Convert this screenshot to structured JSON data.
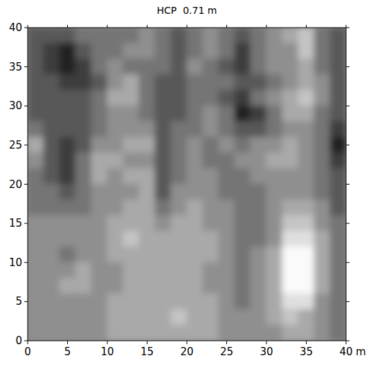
{
  "chart_data": {
    "type": "heatmap",
    "title": "HCP  0.71 m",
    "x_label": "m",
    "xlim": [
      0,
      40
    ],
    "ylim": [
      0,
      40
    ],
    "xticks": [
      0,
      5,
      10,
      15,
      20,
      25,
      30,
      35,
      40
    ],
    "yticks": [
      0,
      5,
      10,
      15,
      20,
      25,
      30,
      35,
      40
    ],
    "x": [
      1,
      3,
      5,
      7,
      9,
      11,
      13,
      15,
      17,
      19,
      21,
      23,
      25,
      27,
      29,
      31,
      33,
      35,
      37,
      39
    ],
    "y": [
      39,
      37,
      35,
      33,
      31,
      29,
      27,
      25,
      23,
      21,
      19,
      17,
      15,
      13,
      11,
      9,
      7,
      5,
      3,
      1
    ],
    "cells": [
      [
        3,
        3,
        3,
        4,
        4,
        4,
        4,
        5,
        4,
        3,
        4,
        5,
        4,
        3,
        4,
        5,
        6,
        7,
        4,
        3
      ],
      [
        3,
        2,
        1,
        3,
        4,
        4,
        5,
        5,
        4,
        3,
        4,
        5,
        4,
        2,
        4,
        5,
        5,
        7,
        4,
        3
      ],
      [
        3,
        2,
        1,
        2,
        4,
        5,
        4,
        4,
        4,
        3,
        5,
        4,
        3,
        2,
        4,
        5,
        5,
        6,
        4,
        3
      ],
      [
        3,
        3,
        2,
        2,
        3,
        5,
        6,
        4,
        3,
        3,
        4,
        4,
        4,
        3,
        3,
        4,
        5,
        6,
        5,
        3
      ],
      [
        3,
        3,
        3,
        3,
        4,
        6,
        6,
        4,
        3,
        3,
        4,
        4,
        3,
        2,
        4,
        5,
        6,
        7,
        5,
        3
      ],
      [
        3,
        3,
        3,
        3,
        4,
        5,
        5,
        4,
        3,
        3,
        4,
        5,
        4,
        1,
        2,
        4,
        6,
        6,
        4,
        3
      ],
      [
        4,
        3,
        3,
        3,
        4,
        5,
        5,
        5,
        3,
        4,
        4,
        5,
        4,
        3,
        3,
        4,
        5,
        5,
        4,
        2
      ],
      [
        6,
        3,
        2,
        3,
        5,
        5,
        6,
        6,
        3,
        4,
        5,
        4,
        5,
        4,
        5,
        5,
        6,
        5,
        4,
        1
      ],
      [
        5,
        3,
        2,
        4,
        6,
        6,
        5,
        5,
        3,
        4,
        5,
        4,
        4,
        5,
        5,
        6,
        6,
        5,
        4,
        2
      ],
      [
        4,
        3,
        2,
        4,
        6,
        5,
        6,
        6,
        3,
        4,
        5,
        5,
        4,
        4,
        5,
        5,
        5,
        5,
        4,
        3
      ],
      [
        4,
        4,
        3,
        4,
        5,
        5,
        5,
        6,
        3,
        5,
        5,
        5,
        4,
        4,
        4,
        5,
        5,
        5,
        4,
        3
      ],
      [
        4,
        4,
        4,
        4,
        5,
        5,
        6,
        6,
        4,
        5,
        6,
        5,
        5,
        4,
        4,
        5,
        6,
        6,
        5,
        3
      ],
      [
        5,
        5,
        5,
        5,
        5,
        6,
        6,
        6,
        5,
        6,
        6,
        5,
        5,
        4,
        4,
        5,
        7,
        7,
        5,
        4
      ],
      [
        5,
        5,
        5,
        5,
        5,
        6,
        7,
        6,
        6,
        6,
        6,
        6,
        5,
        4,
        4,
        5,
        8,
        8,
        6,
        4
      ],
      [
        5,
        5,
        4,
        5,
        5,
        6,
        6,
        6,
        6,
        6,
        6,
        6,
        5,
        4,
        5,
        6,
        9,
        9,
        6,
        4
      ],
      [
        5,
        5,
        5,
        6,
        5,
        5,
        6,
        6,
        6,
        6,
        6,
        5,
        5,
        4,
        5,
        6,
        9,
        9,
        6,
        4
      ],
      [
        5,
        5,
        6,
        6,
        5,
        5,
        6,
        6,
        6,
        6,
        6,
        5,
        5,
        4,
        5,
        6,
        9,
        9,
        6,
        4
      ],
      [
        5,
        5,
        5,
        5,
        5,
        6,
        6,
        6,
        6,
        6,
        6,
        6,
        5,
        4,
        5,
        6,
        8,
        8,
        5,
        4
      ],
      [
        5,
        5,
        5,
        5,
        5,
        6,
        6,
        6,
        6,
        7,
        6,
        6,
        5,
        5,
        5,
        6,
        7,
        6,
        5,
        4
      ],
      [
        5,
        5,
        5,
        5,
        5,
        6,
        6,
        6,
        6,
        6,
        6,
        6,
        5,
        5,
        5,
        5,
        6,
        6,
        5,
        4
      ]
    ]
  }
}
